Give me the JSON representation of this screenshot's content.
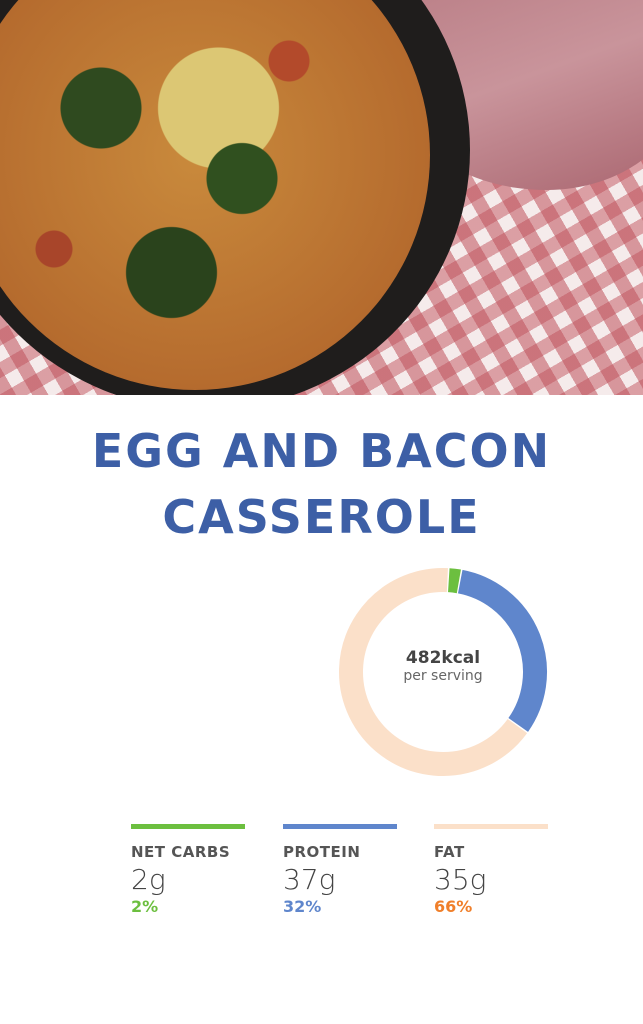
{
  "recipe": {
    "title_line1": "EGG AND BACON",
    "title_line2": "CASSEROLE"
  },
  "nutrition": {
    "calories": "482kcal",
    "calories_unit_label": "per serving",
    "macros": [
      {
        "label": "NET CARBS",
        "grams": "2g",
        "percent": "2%",
        "percent_value": 2,
        "color": "#6cbf3f",
        "percent_color": "#6cbf3f"
      },
      {
        "label": "PROTEIN",
        "grams": "37g",
        "percent": "32%",
        "percent_value": 32,
        "color": "#5f86cc",
        "percent_color": "#5f86cc"
      },
      {
        "label": "FAT",
        "grams": "35g",
        "percent": "66%",
        "percent_value": 66,
        "color": "#fbe0c9",
        "percent_color": "#f07f2a"
      }
    ]
  }
}
